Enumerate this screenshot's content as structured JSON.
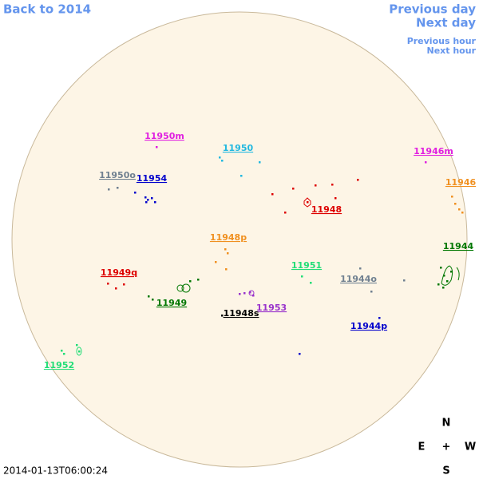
{
  "nav": {
    "back": "Back to 2014",
    "previous_day": "Previous day",
    "next_day": "Next day",
    "previous_hour": "Previous hour",
    "next_hour": "Next hour"
  },
  "regions": [
    {
      "label": "11950m",
      "color": "#e020e0"
    },
    {
      "label": "11950",
      "color": "#22b8e0"
    },
    {
      "label": "11946m",
      "color": "#e020e0"
    },
    {
      "label": "11950o",
      "color": "#708090"
    },
    {
      "label": "11954",
      "color": "#0000cc"
    },
    {
      "label": "11946",
      "color": "#f09020"
    },
    {
      "label": "11948",
      "color": "#dd0000"
    },
    {
      "label": "11948p",
      "color": "#f09020"
    },
    {
      "label": "11944",
      "color": "#007700"
    },
    {
      "label": "11951",
      "color": "#22dd77"
    },
    {
      "label": "11949q",
      "color": "#dd0000"
    },
    {
      "label": "11944o",
      "color": "#708090"
    },
    {
      "label": "11949",
      "color": "#007700"
    },
    {
      "label": "11953",
      "color": "#9933cc"
    },
    {
      "label": "11948s",
      "color": "#000000"
    },
    {
      "label": "11944p",
      "color": "#0000cc"
    },
    {
      "label": "11952",
      "color": "#22dd77"
    }
  ],
  "timestamp": "2014-01-13T06:00:24",
  "compass": {
    "north": "N",
    "east": "E",
    "center": "+",
    "west": "W",
    "south": "S"
  }
}
